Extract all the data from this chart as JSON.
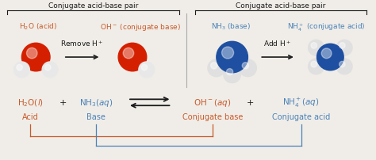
{
  "bg_color": "#f0ede8",
  "black_color": "#1a1a1a",
  "acid_color": "#c85a2a",
  "base_color": "#4a82b8",
  "gray_line": "#888888",
  "left_label": "Conjugate acid-base pair",
  "right_label": "Conjugate acid-base pair",
  "h2o_label": "H",
  "oh_label": "OH",
  "nh3_label": "NH",
  "nh4_label": "NH",
  "acid_word": "Acid",
  "base_word": "Base",
  "conj_base_word": "Conjugate base",
  "conj_acid_word": "Conjugate acid"
}
